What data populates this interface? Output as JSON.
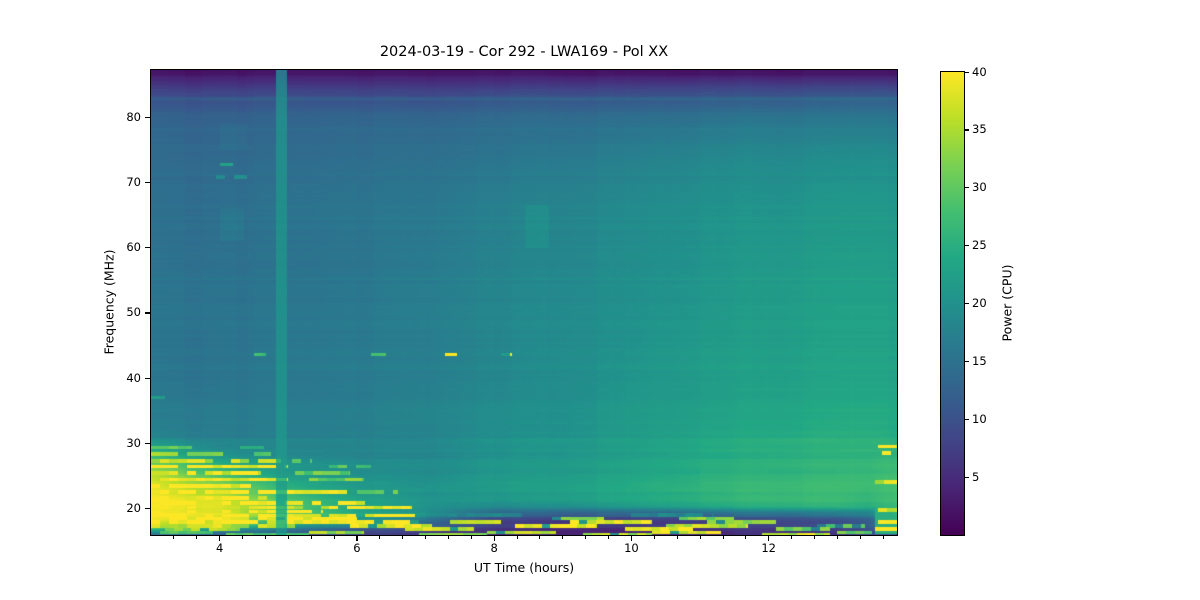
{
  "figure": {
    "title": "2024-03-19 - Cor 292 - LWA169 - Pol XX",
    "background": "#ffffff"
  },
  "axes": {
    "xlabel": "UT Time (hours)",
    "ylabel": "Frequency (MHz)",
    "x_major_ticks": [
      4,
      6,
      8,
      10,
      12
    ],
    "x_minor_interval_hours": 0.3333,
    "y_major_ticks": [
      20,
      30,
      40,
      50,
      60,
      70,
      80
    ],
    "x_range_hours": [
      3.0,
      13.87
    ],
    "y_range_mhz": [
      15.9,
      87.3
    ]
  },
  "colorbar": {
    "label": "Power (CPU)",
    "ticks": [
      5,
      10,
      15,
      20,
      25,
      30,
      35,
      40
    ],
    "range": [
      0,
      40
    ],
    "colormap": "viridis",
    "stops": [
      "#440154",
      "#482475",
      "#414487",
      "#355f8d",
      "#2a788e",
      "#21918c",
      "#22a884",
      "#44bf70",
      "#7ad151",
      "#bddf26",
      "#fde725"
    ]
  },
  "chart_data": {
    "type": "heatmap",
    "title": "2024-03-19 - Cor 292 - LWA169 - Pol XX",
    "xlabel": "UT Time (hours)",
    "ylabel": "Frequency (MHz)",
    "value_label": "Power (CPU)",
    "x_range": [
      3.0,
      13.87
    ],
    "y_range": [
      15.9,
      87.3
    ],
    "value_range": [
      0,
      40
    ],
    "time_anchors": [
      3.0,
      4.0,
      5.0,
      6.0,
      7.0,
      8.0,
      9.0,
      10.0,
      11.0,
      12.0,
      13.0,
      13.45,
      13.87
    ],
    "freq_anchors": [
      15.9,
      16.6,
      17.4,
      18.3,
      19.2,
      20.2,
      21.5,
      23,
      25,
      27,
      29,
      31,
      34,
      38,
      43,
      50,
      58,
      66,
      74,
      80,
      83,
      85,
      86.5,
      87.3
    ],
    "power_grid": [
      [
        14,
        12,
        10,
        8,
        7,
        5,
        5,
        5,
        5,
        6,
        7,
        9,
        12
      ],
      [
        24,
        20,
        15,
        11,
        9,
        6,
        5,
        5,
        6,
        7,
        8,
        10,
        16
      ],
      [
        36,
        30,
        22,
        17,
        13,
        7,
        6,
        6,
        7,
        8,
        9,
        11,
        20
      ],
      [
        40,
        36,
        27,
        22,
        17,
        9,
        8,
        8,
        9,
        10,
        11,
        13,
        24
      ],
      [
        40,
        38,
        30,
        24,
        20,
        13,
        12,
        12.5,
        13.5,
        15,
        16,
        17,
        26
      ],
      [
        40,
        39,
        30,
        24,
        21,
        19,
        20,
        22,
        24,
        25.5,
        26,
        25,
        27
      ],
      [
        40,
        37,
        28,
        23,
        20.5,
        21,
        22.5,
        24,
        25.5,
        27,
        27,
        26,
        28
      ],
      [
        38,
        33,
        25,
        21,
        20,
        21,
        22.5,
        24,
        25.5,
        26.5,
        27,
        26.5,
        28
      ],
      [
        36,
        28,
        22,
        20,
        19.5,
        21,
        22,
        23.5,
        25,
        26,
        26.5,
        26.5,
        28
      ],
      [
        30,
        24,
        20,
        19,
        19,
        20.5,
        21.5,
        23,
        24.5,
        25.5,
        26,
        26,
        27
      ],
      [
        24,
        19,
        18,
        18,
        18.5,
        20,
        21,
        22.5,
        24,
        25,
        25.5,
        25.5,
        25.5
      ],
      [
        18,
        17,
        17,
        17.5,
        18,
        19.5,
        20.5,
        22,
        23.5,
        24.5,
        25,
        25,
        24.5
      ],
      [
        16.5,
        16.5,
        16.5,
        17,
        18,
        19,
        20,
        21.5,
        22.5,
        23.5,
        24,
        24,
        24
      ],
      [
        16,
        16,
        16,
        16.5,
        17.5,
        18.5,
        19.5,
        21,
        22,
        23,
        23.5,
        23.5,
        23.5
      ],
      [
        15.5,
        15.5,
        16,
        16.5,
        17,
        18,
        19.5,
        20.5,
        22,
        22.5,
        23,
        23,
        23
      ],
      [
        15.5,
        15.5,
        15.5,
        16,
        17,
        18,
        19,
        20,
        21,
        22,
        22.5,
        22.5,
        22.5
      ],
      [
        15,
        15,
        15,
        15.5,
        16.5,
        17.5,
        18.5,
        19.5,
        20.5,
        21.5,
        22,
        22,
        22
      ],
      [
        14.5,
        14.5,
        15,
        15.5,
        16,
        17,
        18,
        19,
        20,
        20.5,
        21,
        21,
        21
      ],
      [
        14,
        14,
        14,
        14.5,
        15,
        15.5,
        16.5,
        17.5,
        18.5,
        19,
        19.5,
        19.5,
        19.5
      ],
      [
        12.5,
        12.5,
        12.5,
        13,
        13,
        13.5,
        14,
        14.5,
        15,
        15.5,
        15.5,
        15.5,
        15.5
      ],
      [
        10,
        10,
        10,
        10,
        10,
        10.5,
        11,
        11,
        11.5,
        11.5,
        12,
        12,
        12
      ],
      [
        6,
        6,
        6,
        6,
        6,
        6,
        6.5,
        6.5,
        7,
        7,
        7,
        7,
        7
      ],
      [
        3,
        3,
        3,
        3,
        3,
        3,
        3,
        3,
        3,
        3,
        3,
        3,
        3
      ],
      [
        1.5,
        1.5,
        1.5,
        1.5,
        1.5,
        1.5,
        1.5,
        1.5,
        1.5,
        1.5,
        1.5,
        1.5,
        1.5
      ]
    ],
    "vertical_stripe": {
      "t": [
        4.82,
        4.98
      ],
      "pull_power": 21.5
    },
    "dashes": [
      {
        "f": 43.6,
        "t": [
          4.5,
          4.68
        ],
        "p": 26
      },
      {
        "f": 43.6,
        "t": [
          6.2,
          6.42
        ],
        "p": 30
      },
      {
        "f": 43.6,
        "t": [
          7.28,
          7.46
        ],
        "p": 40
      },
      {
        "f": 43.6,
        "t": [
          8.1,
          8.26
        ],
        "p": 40
      },
      {
        "f": 72.8,
        "t": [
          4.0,
          4.2
        ],
        "p": 24
      },
      {
        "f": 70.9,
        "t": [
          3.95,
          4.4
        ],
        "p": 19
      }
    ],
    "streaks": [
      {
        "f": 37.0,
        "t": [
          3.0,
          3.2
        ],
        "p": 22
      },
      {
        "f": 29.3,
        "t": [
          3.0,
          3.6
        ],
        "p": 30
      },
      {
        "f": 29.3,
        "t": [
          4.3,
          4.65
        ],
        "p": 26
      },
      {
        "f": 28.3,
        "t": [
          3.0,
          4.05
        ],
        "p": 33
      },
      {
        "f": 28.3,
        "t": [
          4.5,
          4.75
        ],
        "p": 29
      },
      {
        "f": 27.3,
        "t": [
          3.0,
          4.9
        ],
        "p": 36
      },
      {
        "f": 27.3,
        "t": [
          5.05,
          5.35
        ],
        "p": 28
      },
      {
        "f": 26.4,
        "t": [
          3.0,
          5.0
        ],
        "p": 40
      },
      {
        "f": 26.4,
        "t": [
          5.6,
          6.2
        ],
        "p": 29
      },
      {
        "f": 25.4,
        "t": [
          3.0,
          4.6
        ],
        "p": 38
      },
      {
        "f": 25.4,
        "t": [
          5.1,
          5.9
        ],
        "p": 30
      },
      {
        "f": 24.4,
        "t": [
          3.0,
          5.0
        ],
        "p": 40
      },
      {
        "f": 24.4,
        "t": [
          5.3,
          6.1
        ],
        "p": 31
      },
      {
        "f": 23.4,
        "t": [
          3.0,
          4.45
        ],
        "p": 40
      },
      {
        "f": 22.5,
        "t": [
          3.0,
          5.85
        ],
        "p": 40
      },
      {
        "f": 22.5,
        "t": [
          6.0,
          6.6
        ],
        "p": 30
      },
      {
        "f": 21.6,
        "t": [
          3.0,
          4.8
        ],
        "p": 40
      },
      {
        "f": 20.8,
        "t": [
          3.0,
          6.25
        ],
        "p": 40
      },
      {
        "f": 20.1,
        "t": [
          3.0,
          6.8
        ],
        "p": 38
      },
      {
        "f": 19.5,
        "t": [
          3.0,
          5.5
        ],
        "p": 40
      },
      {
        "f": 18.9,
        "t": [
          3.0,
          6.85
        ],
        "p": 40
      },
      {
        "f": 18.4,
        "t": [
          3.0,
          6.0
        ],
        "p": 40
      },
      {
        "f": 18.4,
        "t": [
          8.85,
          9.6
        ],
        "p": 34
      },
      {
        "f": 18.4,
        "t": [
          10.7,
          11.5
        ],
        "p": 32
      },
      {
        "f": 17.9,
        "t": [
          3.0,
          6.9
        ],
        "p": 40
      },
      {
        "f": 17.9,
        "t": [
          7.35,
          8.1
        ],
        "p": 36
      },
      {
        "f": 17.9,
        "t": [
          9.1,
          10.3
        ],
        "p": 38
      },
      {
        "f": 17.9,
        "t": [
          11.1,
          12.1
        ],
        "p": 34
      },
      {
        "f": 17.9,
        "t": [
          13.6,
          13.87
        ],
        "p": 40
      },
      {
        "f": 17.3,
        "t": [
          3.0,
          5.1
        ],
        "p": 36
      },
      {
        "f": 17.3,
        "t": [
          5.9,
          7.1
        ],
        "p": 38
      },
      {
        "f": 17.3,
        "t": [
          8.3,
          9.5
        ],
        "p": 40
      },
      {
        "f": 17.3,
        "t": [
          10.5,
          11.7
        ],
        "p": 36
      },
      {
        "f": 17.3,
        "t": [
          12.7,
          13.4
        ],
        "p": 30
      },
      {
        "f": 16.8,
        "t": [
          3.2,
          4.3
        ],
        "p": 34
      },
      {
        "f": 16.8,
        "t": [
          6.7,
          7.7
        ],
        "p": 38
      },
      {
        "f": 16.8,
        "t": [
          9.9,
          10.9
        ],
        "p": 40
      },
      {
        "f": 16.8,
        "t": [
          12.1,
          12.9
        ],
        "p": 32
      },
      {
        "f": 16.8,
        "t": [
          13.55,
          13.87
        ],
        "p": 38
      },
      {
        "f": 16.3,
        "t": [
          3.0,
          3.9
        ],
        "p": 30
      },
      {
        "f": 16.3,
        "t": [
          5.3,
          6.1
        ],
        "p": 34
      },
      {
        "f": 16.3,
        "t": [
          7.9,
          8.9
        ],
        "p": 36
      },
      {
        "f": 16.3,
        "t": [
          10.3,
          11.3
        ],
        "p": 38
      },
      {
        "f": 16.3,
        "t": [
          13.0,
          13.5
        ],
        "p": 30
      },
      {
        "f": 16.0,
        "t": [
          4.1,
          5.3
        ],
        "p": 28
      },
      {
        "f": 16.0,
        "t": [
          6.9,
          7.9
        ],
        "p": 32
      },
      {
        "f": 16.0,
        "t": [
          9.3,
          10.3
        ],
        "p": 34
      },
      {
        "f": 16.0,
        "t": [
          11.9,
          12.9
        ],
        "p": 36
      },
      {
        "f": 19.0,
        "t": [
          7.2,
          8.4
        ],
        "p": 18
      },
      {
        "f": 19.0,
        "t": [
          10.0,
          11.2
        ],
        "p": 18
      },
      {
        "f": 29.5,
        "t": [
          13.6,
          13.87
        ],
        "p": 40
      },
      {
        "f": 28.5,
        "t": [
          13.65,
          13.87
        ],
        "p": 38
      },
      {
        "f": 24.0,
        "t": [
          13.55,
          13.87
        ],
        "p": 36
      },
      {
        "f": 19.7,
        "t": [
          13.6,
          13.87
        ],
        "p": 38
      }
    ],
    "patches": [
      {
        "t": [
          8.45,
          8.8
        ],
        "f": [
          60,
          66.5
        ],
        "add": 1.5
      },
      {
        "t": [
          4.0,
          4.35
        ],
        "f": [
          61,
          66
        ],
        "add": 1.2
      },
      {
        "t": [
          4.0,
          4.4
        ],
        "f": [
          75,
          79
        ],
        "add": 0.8
      },
      {
        "t": [
          13.55,
          13.87
        ],
        "f": [
          16,
          30
        ],
        "min": 25
      }
    ],
    "full_width_lines": [
      {
        "f": 82.9,
        "add": 2
      },
      {
        "f": 78.3,
        "add": 1
      },
      {
        "f": 64.5,
        "add": 0.7
      },
      {
        "f": 55.2,
        "add": 0.6
      },
      {
        "f": 35.0,
        "add": 0.8
      }
    ]
  }
}
